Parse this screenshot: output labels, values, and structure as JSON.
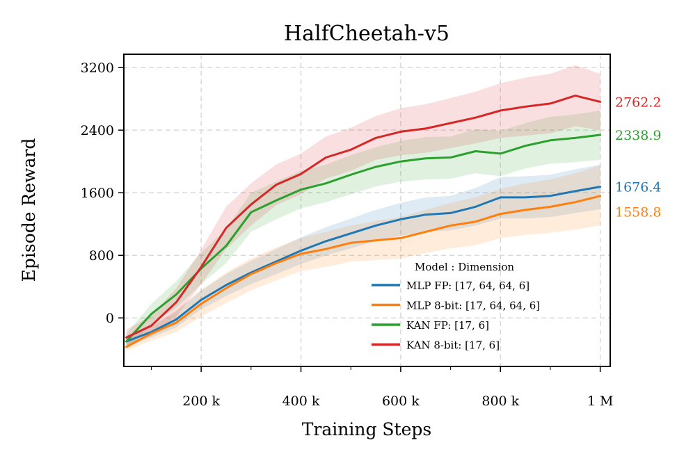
{
  "chart_data": {
    "type": "line",
    "title": "HalfCheetah-v5",
    "xlabel": "Training Steps",
    "ylabel": "Episode Reward",
    "xlim": [
      45000,
      1020000
    ],
    "ylim": [
      -620,
      3370
    ],
    "yticks": [
      0,
      800,
      1600,
      2400,
      3200
    ],
    "ytick_labels": [
      "0",
      "800",
      "1600",
      "2400",
      "3200"
    ],
    "xticks": [
      200000,
      400000,
      600000,
      800000,
      1000000
    ],
    "xtick_labels": [
      "200 k",
      "400 k",
      "600 k",
      "800 k",
      "1 M"
    ],
    "xminor": [
      100000,
      300000,
      500000,
      700000,
      900000
    ],
    "grid": true,
    "legend": {
      "title": "Model : Dimension",
      "position": "lower-right",
      "entries": [
        "MLP FP: [17, 64, 64, 6]",
        "MLP 8-bit: [17, 64, 64, 6]",
        "KAN FP: [17, 6]",
        "KAN 8-bit: [17, 6]"
      ]
    },
    "series": [
      {
        "name": "MLP FP: [17, 64, 64, 6]",
        "color": "#1f77b4",
        "final_label": "1676.4",
        "x": [
          50000,
          100000,
          150000,
          200000,
          250000,
          300000,
          350000,
          400000,
          450000,
          500000,
          550000,
          600000,
          650000,
          700000,
          750000,
          800000,
          850000,
          900000,
          950000,
          1000000
        ],
        "y": [
          -300,
          -180,
          -20,
          230,
          420,
          580,
          720,
          860,
          980,
          1080,
          1180,
          1260,
          1320,
          1340,
          1420,
          1540,
          1540,
          1560,
          1620,
          1676
        ],
        "lower": [
          -360,
          -250,
          -120,
          110,
          280,
          430,
          560,
          690,
          800,
          890,
          980,
          1050,
          1100,
          1120,
          1180,
          1270,
          1270,
          1290,
          1340,
          1390
        ],
        "upper": [
          -240,
          -110,
          80,
          350,
          560,
          730,
          880,
          1030,
          1160,
          1270,
          1380,
          1470,
          1540,
          1560,
          1660,
          1800,
          1810,
          1830,
          1900,
          1960
        ]
      },
      {
        "name": "MLP 8-bit: [17, 64, 64, 6]",
        "color": "#ff7f0e",
        "final_label": "1558.8",
        "x": [
          50000,
          100000,
          150000,
          200000,
          250000,
          300000,
          350000,
          400000,
          450000,
          500000,
          550000,
          600000,
          650000,
          700000,
          750000,
          800000,
          850000,
          900000,
          950000,
          1000000
        ],
        "y": [
          -370,
          -200,
          -60,
          180,
          380,
          560,
          700,
          820,
          880,
          960,
          990,
          1020,
          1100,
          1180,
          1230,
          1330,
          1380,
          1420,
          1480,
          1559
        ],
        "lower": [
          -420,
          -290,
          -180,
          20,
          190,
          350,
          480,
          600,
          650,
          720,
          740,
          760,
          830,
          890,
          930,
          1020,
          1060,
          1090,
          1130,
          1180
        ],
        "upper": [
          -320,
          -110,
          100,
          360,
          580,
          760,
          900,
          1020,
          1100,
          1180,
          1240,
          1290,
          1380,
          1470,
          1540,
          1650,
          1720,
          1770,
          1850,
          1950
        ]
      },
      {
        "name": "KAN FP: [17, 6]",
        "color": "#2ca02c",
        "final_label": "2338.9",
        "x": [
          50000,
          100000,
          150000,
          200000,
          250000,
          300000,
          350000,
          400000,
          450000,
          500000,
          550000,
          600000,
          650000,
          700000,
          750000,
          800000,
          850000,
          900000,
          950000,
          1000000
        ],
        "y": [
          -300,
          50,
          300,
          630,
          920,
          1350,
          1500,
          1640,
          1720,
          1830,
          1930,
          2000,
          2040,
          2050,
          2130,
          2100,
          2200,
          2270,
          2300,
          2339
        ],
        "lower": [
          -400,
          -80,
          130,
          430,
          700,
          1100,
          1260,
          1400,
          1480,
          1580,
          1680,
          1740,
          1770,
          1780,
          1850,
          1810,
          1910,
          1970,
          1990,
          2020
        ],
        "upper": [
          -200,
          180,
          470,
          830,
          1140,
          1600,
          1740,
          1880,
          1960,
          2080,
          2180,
          2260,
          2310,
          2320,
          2410,
          2390,
          2490,
          2570,
          2600,
          2650
        ]
      },
      {
        "name": "KAN 8-bit: [17, 6]",
        "color": "#d62728",
        "final_label": "2762.2",
        "x": [
          50000,
          100000,
          150000,
          200000,
          250000,
          300000,
          350000,
          400000,
          450000,
          500000,
          550000,
          600000,
          650000,
          700000,
          750000,
          800000,
          850000,
          900000,
          950000,
          1000000
        ],
        "y": [
          -250,
          -100,
          200,
          650,
          1150,
          1450,
          1700,
          1840,
          2050,
          2150,
          2300,
          2380,
          2420,
          2490,
          2560,
          2650,
          2700,
          2740,
          2840,
          2762
        ],
        "lower": [
          -350,
          -230,
          20,
          430,
          880,
          1180,
          1440,
          1580,
          1780,
          1880,
          2020,
          2080,
          2110,
          2170,
          2230,
          2300,
          2330,
          2360,
          2450,
          2400
        ],
        "upper": [
          -150,
          30,
          380,
          870,
          1420,
          1720,
          1960,
          2100,
          2320,
          2430,
          2580,
          2680,
          2730,
          2810,
          2890,
          3000,
          3070,
          3120,
          3230,
          3120
        ]
      }
    ]
  }
}
